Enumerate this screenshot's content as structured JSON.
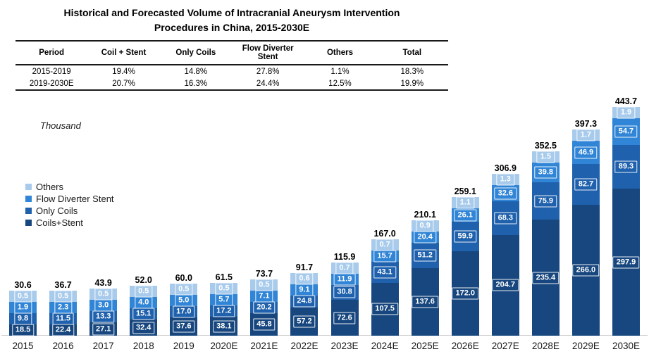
{
  "header": {
    "title_line1": "Historical and Forecasted Volume of Intracranial Aneurysm Intervention",
    "title_line2": "Procedures in China, 2015-2030E"
  },
  "table": {
    "headers": [
      "Period",
      "Coil + Stent",
      "Only Coils",
      "Flow Diverter Stent",
      "Others",
      "Total"
    ],
    "rows": [
      {
        "cells": [
          "2015-2019",
          "19.4%",
          "14.8%",
          "27.8%",
          "1.1%",
          "18.3%"
        ]
      },
      {
        "cells": [
          "2019-2030E",
          "20.7%",
          "16.3%",
          "24.4%",
          "12.5%",
          "19.9%"
        ]
      }
    ]
  },
  "unit_label": "Thousand",
  "legend": {
    "position": "left",
    "items": [
      {
        "label": "Others",
        "color": "#A8CBEC"
      },
      {
        "label": "Flow Diverter Stent",
        "color": "#3185D6"
      },
      {
        "label": "Only Coils",
        "color": "#1F61AC"
      },
      {
        "label": "Coils+Stent",
        "color": "#17477E"
      }
    ]
  },
  "chart_data": {
    "type": "bar",
    "stacked": true,
    "title": "Historical and Forecasted Volume of Intracranial Aneurysm Intervention Procedures in China, 2015-2030E",
    "ylabel": "Thousand",
    "xlabel": "",
    "grid": false,
    "legend_position": "left",
    "categories": [
      "2015",
      "2016",
      "2017",
      "2018",
      "2019",
      "2020E",
      "2021E",
      "2022E",
      "2023E",
      "2024E",
      "2025E",
      "2026E",
      "2027E",
      "2028E",
      "2029E",
      "2030E"
    ],
    "totals": [
      "30.6",
      "36.7",
      "43.9",
      "52.0",
      "60.0",
      "61.5",
      "73.7",
      "91.7",
      "115.9",
      "167.0",
      "210.1",
      "259.1",
      "306.9",
      "352.5",
      "397.3",
      "443.7"
    ],
    "series": [
      {
        "name": "Coils+Stent",
        "color": "#17477E",
        "values": [
          "18.5",
          "22.4",
          "27.1",
          "32.4",
          "37.6",
          "38.1",
          "45.8",
          "57.2",
          "72.6",
          "107.5",
          "137.6",
          "172.0",
          "204.7",
          "235.4",
          "266.0",
          "297.9"
        ]
      },
      {
        "name": "Only Coils",
        "color": "#1F61AC",
        "values": [
          "9.8",
          "11.5",
          "13.3",
          "15.1",
          "17.0",
          "17.2",
          "20.2",
          "24.8",
          "30.8",
          "43.1",
          "51.2",
          "59.9",
          "68.3",
          "75.9",
          "82.7",
          "89.3"
        ]
      },
      {
        "name": "Flow Diverter Stent",
        "color": "#3185D6",
        "values": [
          "1.9",
          "2.3",
          "3.0",
          "4.0",
          "5.0",
          "5.7",
          "7.1",
          "9.1",
          "11.9",
          "15.7",
          "20.4",
          "26.1",
          "32.6",
          "39.8",
          "46.9",
          "54.7"
        ]
      },
      {
        "name": "Others",
        "color": "#A8CBEC",
        "values": [
          "0.5",
          "0.5",
          "0.5",
          "0.5",
          "0.5",
          "0.5",
          "0.5",
          "0.6",
          "0.7",
          "0.7",
          "0.9",
          "1.1",
          "1.3",
          "1.5",
          "1.7",
          "1.9"
        ]
      }
    ]
  },
  "colors": {
    "axis_line": "#CFCFCF",
    "total_label": "#000000",
    "segment_label": "#FFFFFF"
  }
}
